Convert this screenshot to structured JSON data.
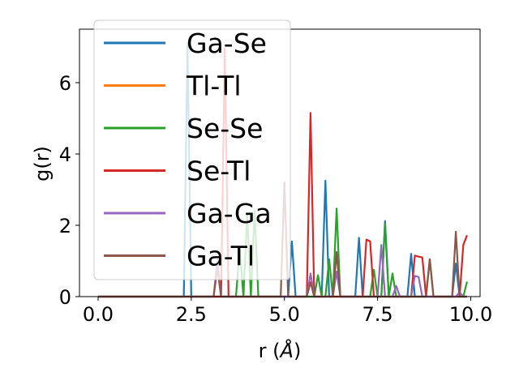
{
  "chart_data": {
    "type": "line",
    "title": "",
    "xlabel": "r (",
    "xlabel_symbol": "Å",
    "xlabel_end": ")",
    "ylabel": "g(r)",
    "xlim": [
      -0.5,
      10.25
    ],
    "ylim": [
      0,
      7.5
    ],
    "xticks": [
      0.0,
      2.5,
      5.0,
      7.5,
      10.0
    ],
    "xtick_labels": [
      "0.0",
      "2.5",
      "5.0",
      "7.5",
      "10.0"
    ],
    "yticks": [
      0,
      2,
      4,
      6
    ],
    "ytick_labels": [
      "0",
      "2",
      "4",
      "6"
    ],
    "grid": false,
    "legend_position": "top-left",
    "x": [
      0.0,
      0.1,
      0.2,
      0.3,
      0.4,
      0.5,
      0.6,
      0.7,
      0.8,
      0.9,
      1.0,
      1.1,
      1.2,
      1.3,
      1.4,
      1.5,
      1.6,
      1.7,
      1.8,
      1.9,
      2.0,
      2.1,
      2.2,
      2.3,
      2.4,
      2.5,
      2.6,
      2.7,
      2.8,
      2.9,
      3.0,
      3.1,
      3.2,
      3.3,
      3.4,
      3.5,
      3.6,
      3.7,
      3.8,
      3.9,
      4.0,
      4.1,
      4.2,
      4.3,
      4.4,
      4.5,
      4.6,
      4.7,
      4.8,
      4.9,
      5.0,
      5.1,
      5.2,
      5.3,
      5.4,
      5.5,
      5.6,
      5.7,
      5.8,
      5.9,
      6.0,
      6.1,
      6.2,
      6.3,
      6.4,
      6.5,
      6.6,
      6.7,
      6.8,
      6.9,
      7.0,
      7.1,
      7.2,
      7.3,
      7.4,
      7.5,
      7.6,
      7.7,
      7.8,
      7.9,
      8.0,
      8.1,
      8.2,
      8.3,
      8.4,
      8.5,
      8.6,
      8.7,
      8.8,
      8.9,
      9.0,
      9.1,
      9.2,
      9.3,
      9.4,
      9.5,
      9.6,
      9.7,
      9.8,
      9.9
    ],
    "series": [
      {
        "name": "Ga-Se",
        "color": "#1f77b4",
        "values": [
          0,
          0,
          0,
          0,
          0,
          0,
          0,
          0,
          0,
          0,
          0,
          0,
          0,
          0,
          0,
          0,
          0,
          0,
          0,
          0,
          0,
          0,
          0,
          0,
          7.1,
          0,
          0,
          0,
          0,
          0,
          0,
          0,
          0,
          0,
          0,
          0,
          0,
          0,
          0,
          0,
          0,
          0,
          0,
          0,
          0,
          0,
          0,
          0,
          0,
          0,
          0,
          0,
          1.55,
          0,
          0,
          0,
          0,
          0,
          0,
          0,
          0,
          3.25,
          0,
          0,
          0,
          0,
          0,
          0,
          0,
          0,
          1.65,
          0,
          0,
          0,
          0,
          0,
          0,
          2.12,
          0,
          0,
          0,
          0,
          0,
          0,
          1.2,
          0,
          0,
          0,
          0,
          0,
          0,
          0,
          0,
          0,
          0,
          0,
          0.93,
          0,
          0,
          0
        ]
      },
      {
        "name": "Tl-Tl",
        "color": "#ff7f0e",
        "values": [
          0,
          0,
          0,
          0,
          0,
          0,
          0,
          0,
          0,
          0,
          0,
          0,
          0,
          0,
          0,
          0,
          0,
          0,
          0,
          0,
          0,
          0,
          0,
          0,
          0,
          0,
          0,
          0,
          0,
          0,
          0,
          0,
          0,
          0,
          0,
          0,
          0,
          0,
          0,
          0,
          0,
          0,
          0,
          0,
          0,
          0,
          0,
          0,
          0,
          0,
          0,
          0,
          0,
          0,
          0,
          0,
          0,
          0,
          0,
          0,
          0,
          0,
          0,
          0,
          0,
          0,
          0,
          0,
          0,
          0,
          0,
          0,
          0,
          0,
          0,
          0,
          0,
          0,
          0,
          0,
          0,
          0,
          0,
          0,
          0,
          0,
          0,
          0,
          0,
          0,
          0,
          0,
          0,
          0,
          0,
          0,
          0,
          0,
          0,
          0
        ]
      },
      {
        "name": "Se-Se",
        "color": "#2ca02c",
        "values": [
          0,
          0,
          0,
          0,
          0,
          0,
          0,
          0,
          0,
          0,
          0,
          0,
          0,
          0,
          0,
          0,
          0,
          0,
          0,
          0,
          0,
          0,
          0,
          0,
          0,
          0,
          0,
          0,
          0,
          0,
          0,
          0,
          0,
          0,
          0,
          0,
          0,
          0,
          1.35,
          0,
          2.3,
          0,
          2.4,
          0,
          0,
          0,
          0,
          0,
          0,
          0,
          0,
          0,
          0,
          0,
          0,
          0,
          0,
          0,
          0,
          0.6,
          0,
          0,
          1.05,
          0,
          2.47,
          0,
          0,
          0,
          0,
          0,
          0,
          0,
          0,
          0,
          0.75,
          0,
          0,
          2.05,
          0,
          0.65,
          0,
          0,
          0,
          0,
          0,
          0,
          0,
          0,
          0,
          1.05,
          0,
          0,
          0,
          0,
          0,
          0,
          0,
          0,
          0,
          0.42
        ]
      },
      {
        "name": "Se-Tl",
        "color": "#d62728",
        "values": [
          0,
          0,
          0,
          0,
          0,
          0,
          0,
          0,
          0,
          0,
          0,
          0,
          0,
          0,
          0,
          0,
          0,
          0,
          0,
          0,
          0,
          0,
          0,
          0,
          0,
          0,
          0,
          0,
          0,
          0,
          0,
          0,
          0,
          0,
          6.95,
          0,
          0,
          0,
          0,
          0,
          0,
          0,
          0,
          0,
          0,
          0,
          0,
          0,
          0,
          0,
          0,
          0,
          0,
          0,
          0,
          0,
          0,
          5.15,
          0,
          0,
          0,
          0,
          0,
          0,
          0,
          0,
          0,
          0,
          0,
          0,
          0,
          0,
          1.6,
          1.55,
          0,
          0,
          0,
          0,
          0,
          0,
          0,
          0,
          0,
          0,
          0,
          1.15,
          1.12,
          1.1,
          0,
          0,
          0,
          0,
          0,
          0,
          0,
          0,
          0,
          0,
          1.45,
          1.72
        ]
      },
      {
        "name": "Ga-Ga",
        "color": "#9467bd",
        "values": [
          0,
          0,
          0,
          0,
          0,
          0,
          0,
          0,
          0,
          0,
          0,
          0,
          0,
          0,
          0,
          0,
          0,
          0,
          0,
          0,
          0,
          0,
          0,
          0,
          0,
          0,
          0,
          0,
          0,
          0,
          0,
          0,
          1.05,
          0,
          0,
          0,
          0,
          0,
          0,
          0,
          0,
          0,
          0,
          0,
          0,
          0,
          0,
          0,
          0,
          0,
          0,
          0,
          0,
          0,
          0,
          0,
          0,
          0.65,
          0,
          0,
          0,
          0,
          0,
          0,
          0.7,
          0,
          0,
          0,
          0,
          0,
          0,
          0,
          0,
          0,
          0,
          0,
          1.45,
          0,
          0,
          0,
          0.3,
          0,
          0,
          0,
          0,
          0.58,
          0.55,
          0,
          0,
          0,
          0,
          0,
          0,
          0,
          0,
          0,
          0,
          0.12,
          0,
          0
        ]
      },
      {
        "name": "Ga-Tl",
        "color": "#8c564b",
        "values": [
          0,
          0,
          0,
          0,
          0,
          0,
          0,
          0,
          0,
          0,
          0,
          0,
          0,
          0,
          0,
          0,
          0,
          0,
          0,
          0,
          0,
          0,
          0,
          0,
          0,
          0,
          0,
          0,
          0,
          0,
          0,
          0,
          0.8,
          0,
          0,
          0,
          0,
          0,
          0,
          0,
          0,
          0,
          0,
          0,
          0,
          0,
          0,
          0,
          0,
          0,
          3.2,
          0,
          0,
          0,
          0,
          0,
          0,
          0.4,
          0,
          0,
          0,
          0,
          0,
          0,
          1.25,
          0,
          0,
          0,
          0,
          0,
          0,
          0,
          0,
          0,
          0,
          0,
          0,
          0,
          0,
          0,
          0,
          0,
          0,
          0,
          0,
          0,
          0,
          0,
          0,
          1.05,
          0,
          0,
          0,
          0,
          0,
          0,
          1.82,
          0,
          0,
          0
        ]
      }
    ]
  }
}
